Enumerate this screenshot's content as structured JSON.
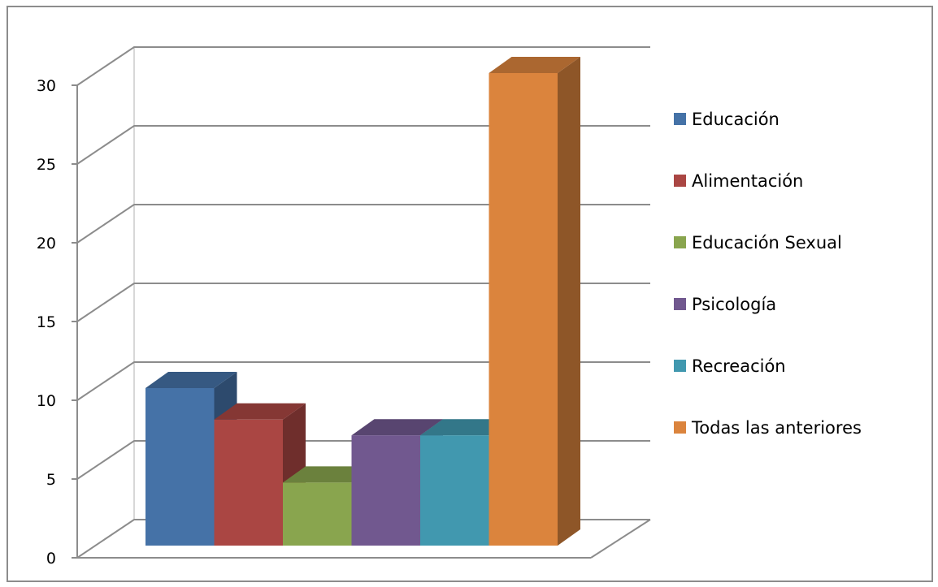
{
  "chart_data": {
    "type": "bar",
    "title": "",
    "xlabel": "",
    "ylabel": "",
    "ylim": [
      0,
      30
    ],
    "yticks": [
      "0",
      "5",
      "10",
      "15",
      "20",
      "25",
      "30"
    ],
    "grid": true,
    "three_d": true,
    "legend_position": "right",
    "series": [
      {
        "name": "Educación",
        "value": 10,
        "color": "#4572A7"
      },
      {
        "name": "Alimentación",
        "value": 8,
        "color": "#AA4643"
      },
      {
        "name": "Educación Sexual",
        "value": 4,
        "color": "#89A54E"
      },
      {
        "name": "Psicología",
        "value": 7,
        "color": "#71588F"
      },
      {
        "name": "Recreación",
        "value": 7,
        "color": "#4198AF"
      },
      {
        "name": "Todas las anteriores",
        "value": 30,
        "color": "#DB843D"
      }
    ]
  }
}
